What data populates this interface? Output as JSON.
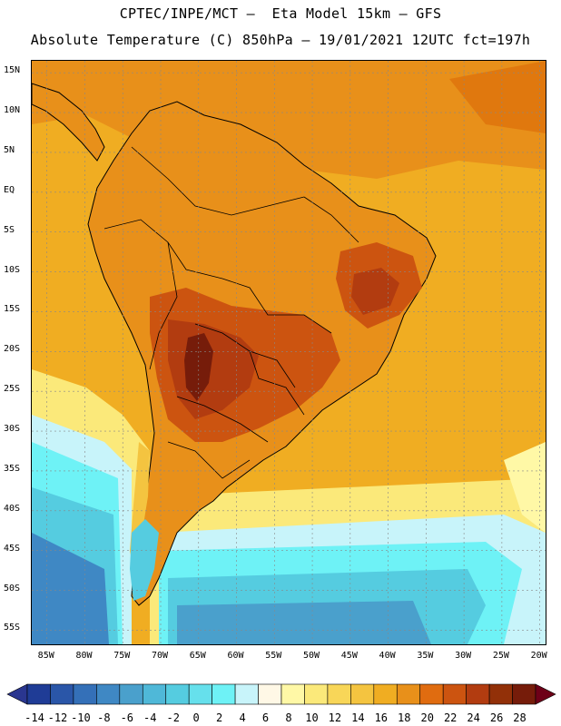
{
  "header": {
    "line1": "CPTEC/INPE/MCT –  Eta Model 15km – GFS",
    "line2": "Absolute Temperature (C) 850hPa – 19/01/2021 12UTC fct=197h"
  },
  "map": {
    "lat_labels": [
      "15N",
      "10N",
      "5N",
      "EQ",
      "5S",
      "10S",
      "15S",
      "20S",
      "25S",
      "30S",
      "35S",
      "40S",
      "45S",
      "50S",
      "55S"
    ],
    "lon_labels": [
      "85W",
      "80W",
      "75W",
      "70W",
      "65W",
      "60W",
      "55W",
      "50W",
      "45W",
      "40W",
      "35W",
      "30W",
      "25W",
      "20W"
    ],
    "lat_values": [
      15,
      10,
      5,
      0,
      -5,
      -10,
      -15,
      -20,
      -25,
      -30,
      -35,
      -40,
      -45,
      -50,
      -55
    ],
    "lon_values": [
      -85,
      -80,
      -75,
      -70,
      -65,
      -60,
      -55,
      -50,
      -45,
      -40,
      -35,
      -30,
      -25,
      -20
    ]
  },
  "colorbar": {
    "labels": [
      "-14",
      "-12",
      "-10",
      "-8",
      "-6",
      "-4",
      "-2",
      "0",
      "2",
      "4",
      "6",
      "8",
      "10",
      "12",
      "14",
      "16",
      "18",
      "20",
      "22",
      "24",
      "26",
      "28"
    ],
    "colors": [
      "#1f3c96",
      "#2a56a8",
      "#3470b8",
      "#3f88c4",
      "#4aa0cc",
      "#4fb8d8",
      "#55cce0",
      "#66e0ec",
      "#6ef2f6",
      "#c8f4fa",
      "#fff8e6",
      "#fff8a6",
      "#fbe97a",
      "#f8d658",
      "#f4c440",
      "#f0ad22",
      "#e8901a",
      "#e06c10",
      "#cc5410",
      "#b23c10",
      "#923008",
      "#761c0a"
    ],
    "low_arrow_color": "#2a3690",
    "high_arrow_color": "#6e0018"
  }
}
